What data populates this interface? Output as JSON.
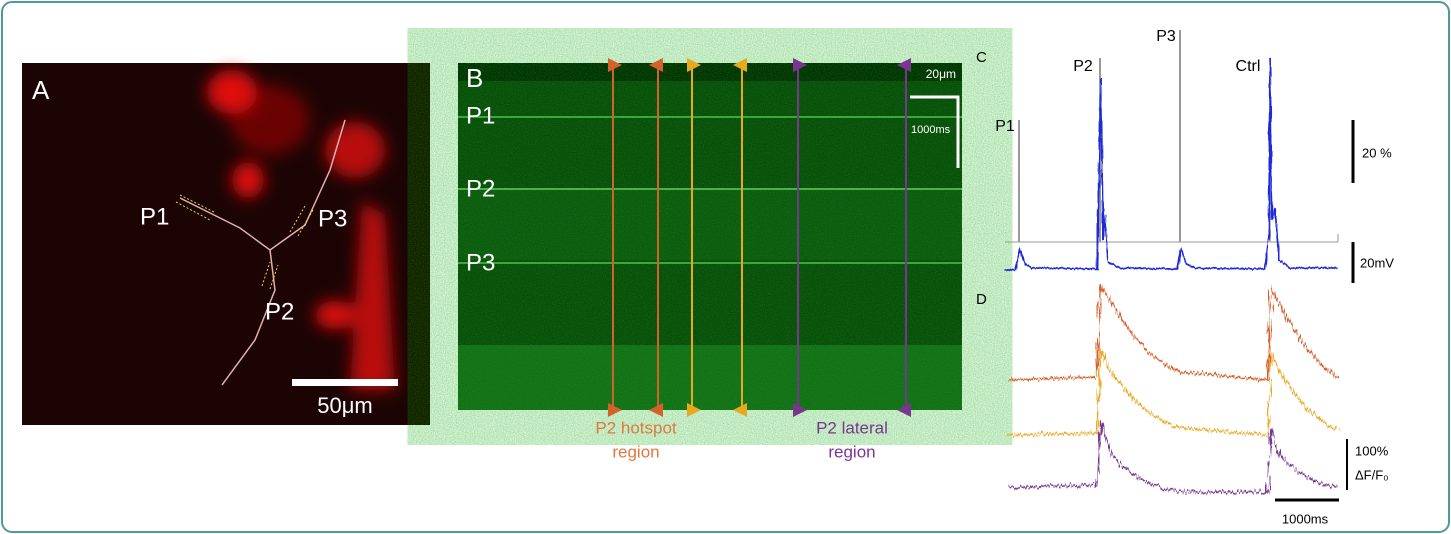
{
  "panel_a": {
    "label": "A",
    "points": [
      "P1",
      "P2",
      "P3"
    ],
    "scale_bar": "50μm"
  },
  "panel_b": {
    "label": "B",
    "points": [
      "P1",
      "P2",
      "P3"
    ],
    "scale_x": "20μm",
    "scale_t": "1000ms",
    "hotspot": [
      "P2 hotspot",
      "region"
    ],
    "lateral": [
      "P2 lateral",
      "region"
    ]
  },
  "panel_c": {
    "label": "C",
    "markers": [
      "P1",
      "P2",
      "P3",
      "Ctrl"
    ],
    "scale_pct": "20 %",
    "scale_mv": "20mV"
  },
  "panel_d": {
    "label": "D",
    "scale_pct": "100%",
    "scale_unit": "ΔF/F₀",
    "scale_t": "1000ms"
  }
}
